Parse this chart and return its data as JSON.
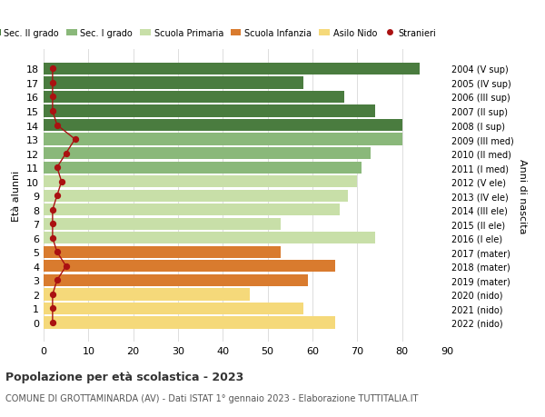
{
  "ages": [
    18,
    17,
    16,
    15,
    14,
    13,
    12,
    11,
    10,
    9,
    8,
    7,
    6,
    5,
    4,
    3,
    2,
    1,
    0
  ],
  "bar_values": [
    84,
    58,
    67,
    74,
    80,
    80,
    73,
    71,
    70,
    68,
    66,
    53,
    74,
    53,
    65,
    59,
    46,
    58,
    65
  ],
  "bar_colors": [
    "#4a7c3f",
    "#4a7c3f",
    "#4a7c3f",
    "#4a7c3f",
    "#4a7c3f",
    "#8ab87a",
    "#8ab87a",
    "#8ab87a",
    "#c8dfa8",
    "#c8dfa8",
    "#c8dfa8",
    "#c8dfa8",
    "#c8dfa8",
    "#d97b2e",
    "#d97b2e",
    "#d97b2e",
    "#f5d97a",
    "#f5d97a",
    "#f5d97a"
  ],
  "stranieri_values": [
    2,
    2,
    2,
    2,
    3,
    7,
    5,
    3,
    4,
    3,
    2,
    2,
    2,
    3,
    5,
    3,
    2,
    2,
    2
  ],
  "right_labels": [
    "2004 (V sup)",
    "2005 (IV sup)",
    "2006 (III sup)",
    "2007 (II sup)",
    "2008 (I sup)",
    "2009 (III med)",
    "2010 (II med)",
    "2011 (I med)",
    "2012 (V ele)",
    "2013 (IV ele)",
    "2014 (III ele)",
    "2015 (II ele)",
    "2016 (I ele)",
    "2017 (mater)",
    "2018 (mater)",
    "2019 (mater)",
    "2020 (nido)",
    "2021 (nido)",
    "2022 (nido)"
  ],
  "xlabel": "",
  "ylabel_left": "Età alunni",
  "ylabel_right": "Anni di nascita",
  "xlim": [
    0,
    90
  ],
  "xticks": [
    0,
    10,
    20,
    30,
    40,
    50,
    60,
    70,
    80,
    90
  ],
  "title": "Popolazione per età scolastica - 2023",
  "subtitle": "COMUNE DI GROTTAMINARDA (AV) - Dati ISTAT 1° gennaio 2023 - Elaborazione TUTTITALIA.IT",
  "legend_labels": [
    "Sec. II grado",
    "Sec. I grado",
    "Scuola Primaria",
    "Scuola Infanzia",
    "Asilo Nido",
    "Stranieri"
  ],
  "legend_colors": [
    "#4a7c3f",
    "#8ab87a",
    "#c8dfa8",
    "#d97b2e",
    "#f5d97a",
    "#aa1111"
  ],
  "bg_color": "#ffffff",
  "grid_color": "#dddddd",
  "bar_height": 0.85,
  "stranieri_color": "#aa1111",
  "stranieri_line_color": "#aa1111"
}
